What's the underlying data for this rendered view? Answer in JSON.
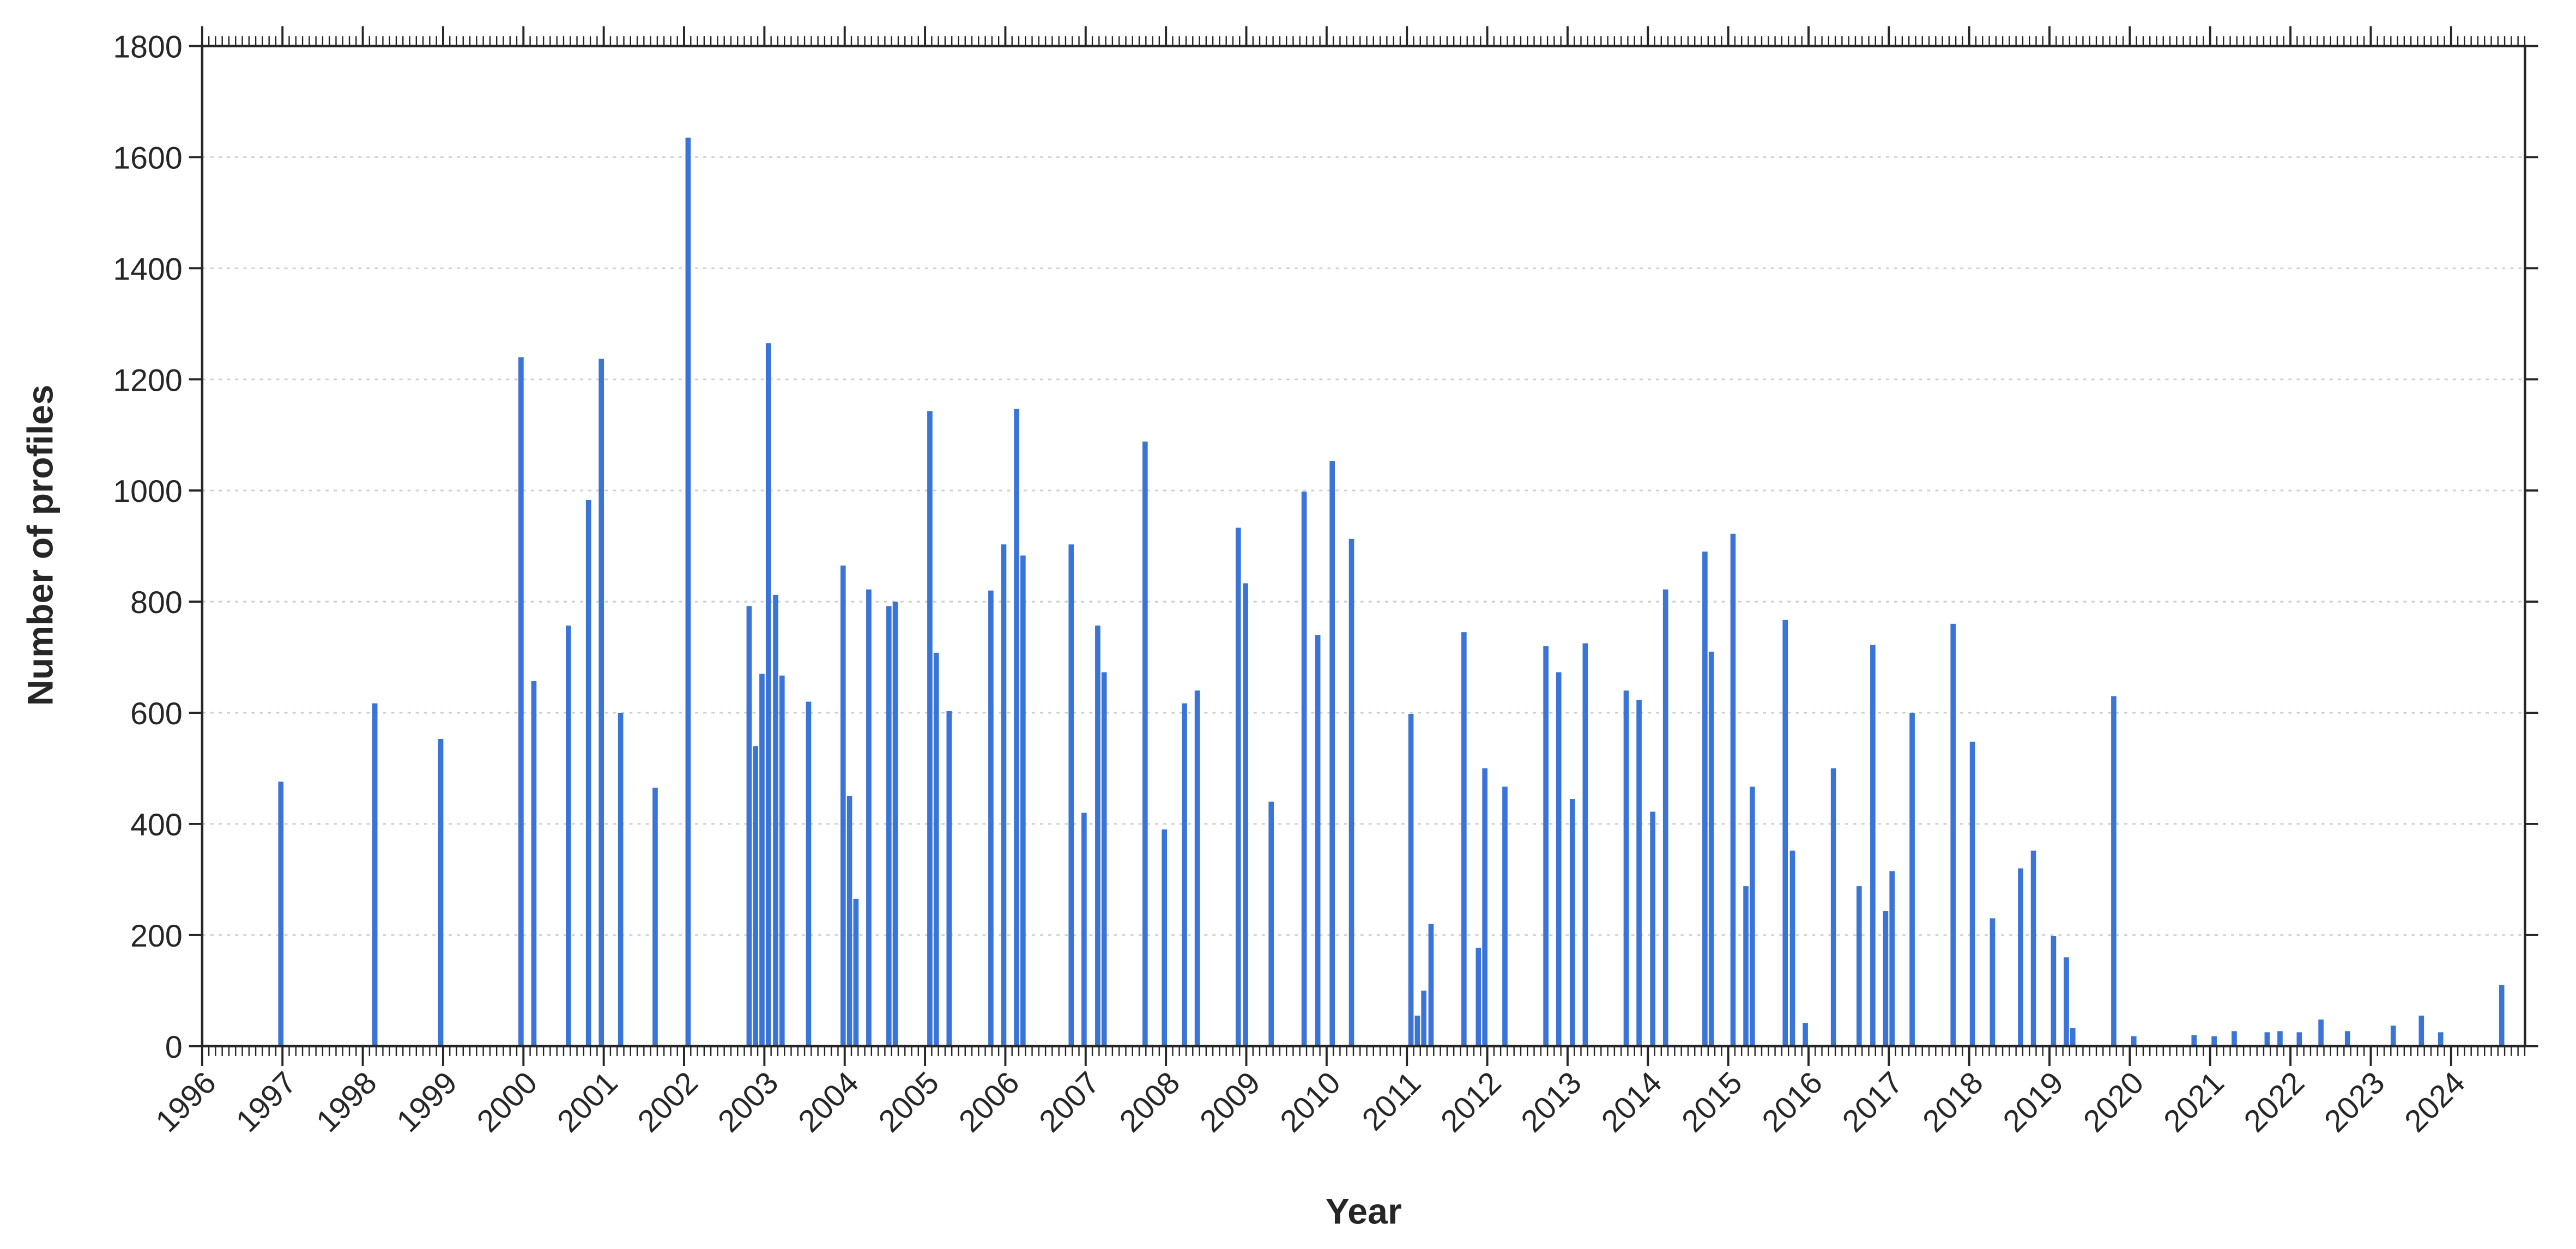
{
  "chart_data": {
    "type": "bar",
    "x_label": "Year",
    "y_label": "Number of profiles",
    "color": "#3a74d6",
    "grid": true,
    "x": [
      1996.98,
      1998.15,
      1998.97,
      1999.97,
      2000.13,
      2000.56,
      2000.81,
      2000.97,
      2001.21,
      2001.64,
      2002.05,
      2002.81,
      2002.89,
      2002.97,
      2003.05,
      2003.14,
      2003.22,
      2003.55,
      2003.98,
      2004.06,
      2004.14,
      2004.3,
      2004.55,
      2004.63,
      2005.06,
      2005.14,
      2005.3,
      2005.82,
      2005.98,
      2006.14,
      2006.22,
      2006.82,
      2006.98,
      2007.15,
      2007.23,
      2007.74,
      2007.98,
      2008.23,
      2008.39,
      2008.9,
      2008.99,
      2009.31,
      2009.72,
      2009.89,
      2010.07,
      2010.31,
      2011.05,
      2011.13,
      2011.21,
      2011.3,
      2011.71,
      2011.89,
      2011.97,
      2012.22,
      2012.73,
      2012.89,
      2013.06,
      2013.22,
      2013.73,
      2013.89,
      2014.06,
      2014.22,
      2014.71,
      2014.79,
      2015.06,
      2015.22,
      2015.3,
      2015.71,
      2015.8,
      2015.96,
      2016.31,
      2016.63,
      2016.8,
      2016.96,
      2017.04,
      2017.29,
      2017.8,
      2018.04,
      2018.29,
      2018.64,
      2018.8,
      2019.05,
      2019.21,
      2019.29,
      2019.8,
      2020.05,
      2020.8,
      2021.05,
      2021.3,
      2021.71,
      2021.87,
      2022.11,
      2022.38,
      2022.71,
      2023.28,
      2023.63,
      2023.87,
      2024.63
    ],
    "values": [
      476,
      617,
      553,
      1240,
      657,
      757,
      983,
      1237,
      600,
      465,
      1635,
      792,
      540,
      670,
      1265,
      812,
      667,
      620,
      865,
      450,
      265,
      822,
      792,
      800,
      1143,
      708,
      603,
      820,
      903,
      1147,
      883,
      903,
      420,
      757,
      673,
      1088,
      390,
      617,
      640,
      933,
      833,
      440,
      998,
      740,
      1053,
      913,
      598,
      55,
      100,
      220,
      745,
      177,
      500,
      467,
      720,
      673,
      445,
      725,
      640,
      623,
      422,
      822,
      890,
      710,
      922,
      288,
      467,
      767,
      352,
      42,
      500,
      288,
      722,
      243,
      315,
      600,
      760,
      548,
      230,
      320,
      352,
      198,
      160,
      33,
      630,
      18,
      20,
      18,
      27,
      25,
      27,
      25,
      48,
      27,
      37,
      55,
      25,
      110
    ],
    "xlim": [
      1996,
      2024.92
    ],
    "xticks": [
      1996,
      1997,
      1998,
      1999,
      2000,
      2001,
      2002,
      2003,
      2004,
      2005,
      2006,
      2007,
      2008,
      2009,
      2010,
      2011,
      2012,
      2013,
      2014,
      2015,
      2016,
      2017,
      2018,
      2019,
      2020,
      2021,
      2022,
      2023,
      2024
    ],
    "ylim": [
      0,
      1800
    ],
    "yticks": [
      0,
      200,
      400,
      600,
      800,
      1000,
      1200,
      1400,
      1600,
      1800
    ]
  }
}
